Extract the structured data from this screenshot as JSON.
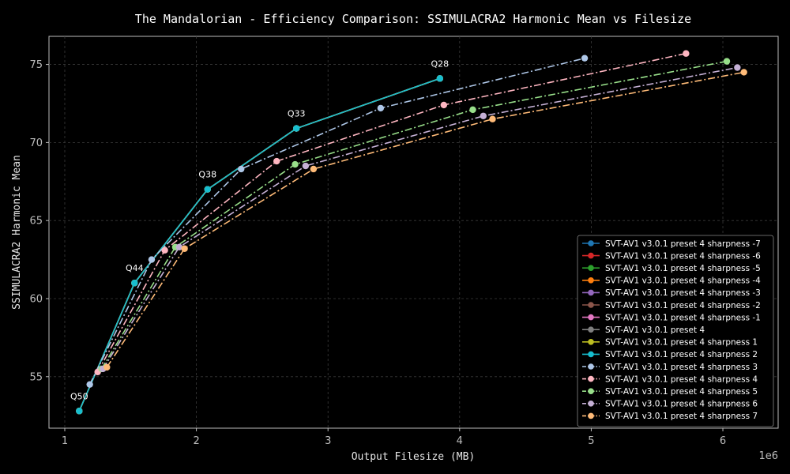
{
  "chart_data": {
    "type": "line",
    "title": "The Mandalorian - Efficiency Comparison: SSIMULACRA2 Harmonic Mean vs Filesize",
    "xlabel": "Output Filesize (MB)",
    "ylabel": "SSIMULACRA2 Harmonic Mean",
    "x_offset_label": "1e6",
    "xlim": [
      880000,
      6420000
    ],
    "ylim": [
      51.7,
      76.8
    ],
    "xticks": [
      1000000,
      2000000,
      3000000,
      4000000,
      5000000,
      6000000
    ],
    "xtick_labels": [
      "1",
      "2",
      "3",
      "4",
      "5",
      "6"
    ],
    "yticks": [
      55,
      60,
      65,
      70,
      75
    ],
    "ytick_labels": [
      "55",
      "60",
      "65",
      "70",
      "75"
    ],
    "grid": true,
    "legend_position": "bottom-right",
    "annotations": [
      {
        "text": "Q50",
        "x": 1110000,
        "y": 52.8
      },
      {
        "text": "Q44",
        "x": 1530000,
        "y": 61.0
      },
      {
        "text": "Q38",
        "x": 2085000,
        "y": 67.0
      },
      {
        "text": "Q33",
        "x": 2760000,
        "y": 70.9
      },
      {
        "text": "Q28",
        "x": 3850000,
        "y": 74.1
      }
    ],
    "series": [
      {
        "name": "SVT-AV1 v3.0.1 preset 4 sharpness -7",
        "color": "#1f77b4",
        "dash": "solid",
        "x": [
          1110000,
          1530000,
          2085000,
          2760000,
          3850000
        ],
        "y": [
          52.8,
          61.0,
          67.0,
          70.9,
          74.1
        ]
      },
      {
        "name": "SVT-AV1 v3.0.1 preset 4 sharpness -6",
        "color": "#d62728",
        "dash": "solid",
        "x": [
          1110000,
          1530000,
          2085000,
          2760000,
          3850000
        ],
        "y": [
          52.8,
          61.0,
          67.0,
          70.9,
          74.1
        ]
      },
      {
        "name": "SVT-AV1 v3.0.1 preset 4 sharpness -5",
        "color": "#2ca02c",
        "dash": "solid",
        "x": [
          1110000,
          1530000,
          2085000,
          2760000,
          3850000
        ],
        "y": [
          52.8,
          61.0,
          67.0,
          70.9,
          74.1
        ]
      },
      {
        "name": "SVT-AV1 v3.0.1 preset 4 sharpness -4",
        "color": "#ff7f0e",
        "dash": "solid",
        "x": [
          1110000,
          1530000,
          2085000,
          2760000,
          3850000
        ],
        "y": [
          52.8,
          61.0,
          67.0,
          70.9,
          74.1
        ]
      },
      {
        "name": "SVT-AV1 v3.0.1 preset 4 sharpness -3",
        "color": "#9467bd",
        "dash": "solid",
        "x": [
          1110000,
          1530000,
          2085000,
          2760000,
          3850000
        ],
        "y": [
          52.8,
          61.0,
          67.0,
          70.9,
          74.1
        ]
      },
      {
        "name": "SVT-AV1 v3.0.1 preset 4 sharpness -2",
        "color": "#8c564b",
        "dash": "solid",
        "x": [
          1110000,
          1530000,
          2085000,
          2760000,
          3850000
        ],
        "y": [
          52.8,
          61.0,
          67.0,
          70.9,
          74.1
        ]
      },
      {
        "name": "SVT-AV1 v3.0.1 preset 4 sharpness -1",
        "color": "#e377c2",
        "dash": "solid",
        "x": [
          1110000,
          1530000,
          2085000,
          2760000,
          3850000
        ],
        "y": [
          52.8,
          61.0,
          67.0,
          70.9,
          74.1
        ]
      },
      {
        "name": "SVT-AV1 v3.0.1 preset 4",
        "color": "#7f7f7f",
        "dash": "solid",
        "x": [
          1110000,
          1530000,
          2085000,
          2760000,
          3850000
        ],
        "y": [
          52.8,
          61.0,
          67.0,
          70.9,
          74.1
        ]
      },
      {
        "name": "SVT-AV1 v3.0.1 preset 4 sharpness 1",
        "color": "#bcbd22",
        "dash": "solid",
        "x": [
          1110000,
          1530000,
          2085000,
          2760000,
          3850000
        ],
        "y": [
          52.8,
          61.0,
          67.0,
          70.9,
          74.1
        ]
      },
      {
        "name": "SVT-AV1 v3.0.1 preset 4 sharpness 2",
        "color": "#17becf",
        "dash": "solid",
        "x": [
          1110000,
          1530000,
          2085000,
          2760000,
          3850000
        ],
        "y": [
          52.8,
          61.0,
          67.0,
          70.9,
          74.1
        ]
      },
      {
        "name": "SVT-AV1 v3.0.1 preset 4 sharpness 3",
        "color": "#aec7e8",
        "dash": "dashdot",
        "x": [
          1190000,
          1660000,
          2340000,
          3400000,
          4950000
        ],
        "y": [
          54.5,
          62.5,
          68.3,
          72.2,
          75.4
        ]
      },
      {
        "name": "SVT-AV1 v3.0.1 preset 4 sharpness 4",
        "color": "#ffb6c1",
        "dash": "dashdot",
        "x": [
          1250000,
          1760000,
          2610000,
          3880000,
          5720000
        ],
        "y": [
          55.3,
          63.1,
          68.8,
          72.4,
          75.7
        ]
      },
      {
        "name": "SVT-AV1 v3.0.1 preset 4 sharpness 5",
        "color": "#98df8a",
        "dash": "dashdot",
        "x": [
          1280000,
          1840000,
          2750000,
          4100000,
          6030000
        ],
        "y": [
          55.5,
          63.3,
          68.6,
          72.1,
          75.2
        ]
      },
      {
        "name": "SVT-AV1 v3.0.1 preset 4 sharpness 6",
        "color": "#c5b0d5",
        "dash": "dashdot",
        "x": [
          1290000,
          1870000,
          2830000,
          4180000,
          6110000
        ],
        "y": [
          55.5,
          63.3,
          68.5,
          71.7,
          74.8
        ]
      },
      {
        "name": "SVT-AV1 v3.0.1 preset 4 sharpness 7",
        "color": "#ffbb78",
        "dash": "dashdot",
        "x": [
          1320000,
          1910000,
          2890000,
          4250000,
          6160000
        ],
        "y": [
          55.6,
          63.2,
          68.3,
          71.5,
          74.5
        ]
      }
    ]
  }
}
